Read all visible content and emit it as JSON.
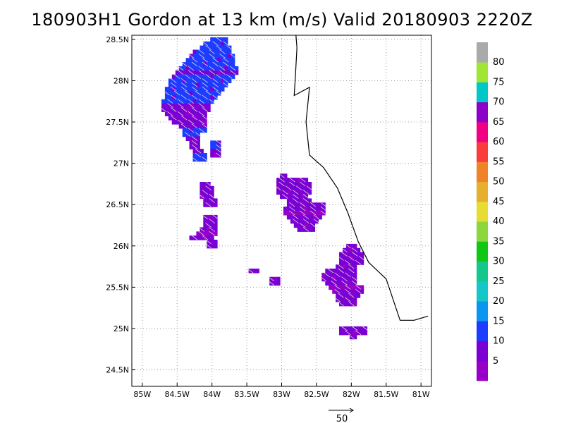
{
  "title": "180903H1 Gordon at 13 km (m/s) Valid 20180903  2220Z",
  "map": {
    "lon_range": [
      -85.15,
      -80.85
    ],
    "lat_range": [
      24.3,
      28.55
    ],
    "lat_ticks": [
      {
        "value": 28.5,
        "label": "28.5N"
      },
      {
        "value": 28.0,
        "label": "28N"
      },
      {
        "value": 27.5,
        "label": "27.5N"
      },
      {
        "value": 27.0,
        "label": "27N"
      },
      {
        "value": 26.5,
        "label": "26.5N"
      },
      {
        "value": 26.0,
        "label": "26N"
      },
      {
        "value": 25.5,
        "label": "25.5N"
      },
      {
        "value": 25.0,
        "label": "25N"
      },
      {
        "value": 24.5,
        "label": "24.5N"
      }
    ],
    "lon_ticks": [
      {
        "value": -85.0,
        "label": "85W"
      },
      {
        "value": -84.5,
        "label": "84.5W"
      },
      {
        "value": -84.0,
        "label": "84W"
      },
      {
        "value": -83.5,
        "label": "83.5W"
      },
      {
        "value": -83.0,
        "label": "83W"
      },
      {
        "value": -82.5,
        "label": "82.5W"
      },
      {
        "value": -82.0,
        "label": "82W"
      },
      {
        "value": -81.5,
        "label": "81.5W"
      },
      {
        "value": -81.0,
        "label": "81W"
      }
    ],
    "grid": true,
    "coastline": [
      [
        -82.8,
        28.6
      ],
      [
        -82.78,
        28.4
      ],
      [
        -82.8,
        28.1
      ],
      [
        -82.82,
        27.82
      ],
      [
        -82.6,
        27.92
      ],
      [
        -82.65,
        27.5
      ],
      [
        -82.6,
        27.1
      ],
      [
        -82.4,
        26.95
      ],
      [
        -82.2,
        26.7
      ],
      [
        -82.05,
        26.4
      ],
      [
        -81.9,
        26.05
      ],
      [
        -81.75,
        25.8
      ],
      [
        -81.5,
        25.6
      ],
      [
        -81.3,
        25.1
      ],
      [
        -81.1,
        25.1
      ],
      [
        -80.9,
        25.15
      ]
    ],
    "colors": [
      "#9800c8",
      "#7a00d4",
      "#1e3cff",
      "#0a96f0",
      "#14c8c8",
      "#14c88c",
      "#10c814",
      "#8cd73c",
      "#e6dc32",
      "#e6af2d",
      "#f08228",
      "#fa3c3c",
      "#f00082",
      "#8c00c8",
      "#00c8c8",
      "#a0e632",
      "#aaaaaa"
    ],
    "wind_regions": [
      {
        "name": "northwest-band",
        "rows": [
          [
            28.5,
            -84.0,
            -83.8,
            2
          ],
          [
            28.45,
            -84.1,
            -83.8,
            2
          ],
          [
            28.4,
            -84.15,
            -83.75,
            2
          ],
          [
            28.35,
            -84.25,
            -83.75,
            2
          ],
          [
            28.3,
            -84.3,
            -83.7,
            2
          ],
          [
            28.25,
            -84.35,
            -83.7,
            2
          ],
          [
            28.2,
            -84.4,
            -83.7,
            2
          ],
          [
            28.15,
            -84.45,
            -83.65,
            2
          ],
          [
            28.1,
            -84.5,
            -83.65,
            1
          ],
          [
            28.05,
            -84.55,
            -83.7,
            2
          ],
          [
            28.0,
            -84.6,
            -83.75,
            2
          ],
          [
            27.95,
            -84.6,
            -83.8,
            2
          ],
          [
            27.9,
            -84.65,
            -83.85,
            2
          ],
          [
            27.85,
            -84.65,
            -83.9,
            2
          ],
          [
            27.8,
            -84.65,
            -83.95,
            2
          ],
          [
            27.75,
            -84.7,
            -84.0,
            2
          ],
          [
            27.7,
            -84.7,
            -84.05,
            1
          ],
          [
            27.65,
            -84.7,
            -84.05,
            1
          ],
          [
            27.6,
            -84.65,
            -84.1,
            1
          ],
          [
            27.55,
            -84.6,
            -84.1,
            1
          ],
          [
            27.5,
            -84.55,
            -84.1,
            1
          ],
          [
            27.45,
            -84.45,
            -84.1,
            1
          ],
          [
            27.4,
            -84.4,
            -84.1,
            2
          ],
          [
            27.35,
            -84.4,
            -84.2,
            2
          ],
          [
            27.3,
            -84.35,
            -84.2,
            1
          ],
          [
            27.25,
            -84.3,
            -84.2,
            1
          ],
          [
            27.2,
            -84.3,
            -84.2,
            1
          ],
          [
            27.15,
            -84.25,
            -84.15,
            1
          ],
          [
            27.1,
            -84.25,
            -84.1,
            2
          ],
          [
            27.05,
            -84.25,
            -84.1,
            2
          ],
          [
            27.25,
            -84.0,
            -83.9,
            2
          ],
          [
            27.2,
            -84.0,
            -83.9,
            2
          ],
          [
            27.15,
            -84.0,
            -83.9,
            1
          ],
          [
            27.1,
            -84.0,
            -83.9,
            1
          ]
        ]
      },
      {
        "name": "west-central",
        "rows": [
          [
            26.75,
            -84.15,
            -84.05,
            1
          ],
          [
            26.7,
            -84.15,
            -84.0,
            1
          ],
          [
            26.65,
            -84.15,
            -84.0,
            1
          ],
          [
            26.6,
            -84.15,
            -84.0,
            1
          ],
          [
            26.55,
            -84.1,
            -83.95,
            1
          ],
          [
            26.5,
            -84.1,
            -83.95,
            1
          ],
          [
            26.35,
            -84.1,
            -83.95,
            1
          ],
          [
            26.3,
            -84.1,
            -83.95,
            1
          ],
          [
            26.25,
            -84.1,
            -83.95,
            1
          ],
          [
            26.2,
            -84.15,
            -83.95,
            1
          ],
          [
            26.15,
            -84.2,
            -83.95,
            0
          ],
          [
            26.1,
            -84.3,
            -84.0,
            1
          ],
          [
            26.05,
            -84.05,
            -83.95,
            1
          ],
          [
            26.0,
            -84.05,
            -83.95,
            1
          ]
        ]
      },
      {
        "name": "small-cells",
        "rows": [
          [
            25.7,
            -83.45,
            -83.35,
            1
          ],
          [
            25.6,
            -83.15,
            -83.05,
            1
          ],
          [
            25.55,
            -83.15,
            -83.05,
            1
          ]
        ]
      },
      {
        "name": "central-east",
        "rows": [
          [
            26.85,
            -83.0,
            -82.95,
            1
          ],
          [
            26.8,
            -83.05,
            -82.65,
            1
          ],
          [
            26.75,
            -83.05,
            -82.6,
            1
          ],
          [
            26.7,
            -83.05,
            -82.6,
            1
          ],
          [
            26.65,
            -83.05,
            -82.6,
            1
          ],
          [
            26.6,
            -83.0,
            -82.65,
            1
          ],
          [
            26.55,
            -82.9,
            -82.6,
            1
          ],
          [
            26.5,
            -82.9,
            -82.4,
            1
          ],
          [
            26.45,
            -82.95,
            -82.4,
            1
          ],
          [
            26.4,
            -82.95,
            -82.4,
            0
          ],
          [
            26.35,
            -82.9,
            -82.45,
            1
          ],
          [
            26.3,
            -82.85,
            -82.5,
            1
          ],
          [
            26.25,
            -82.8,
            -82.55,
            1
          ],
          [
            26.2,
            -82.75,
            -82.55,
            1
          ]
        ]
      },
      {
        "name": "southeast",
        "rows": [
          [
            26.0,
            -82.05,
            -81.95,
            1
          ],
          [
            25.95,
            -82.1,
            -81.9,
            1
          ],
          [
            25.9,
            -82.15,
            -81.85,
            1
          ],
          [
            25.85,
            -82.15,
            -81.85,
            1
          ],
          [
            25.8,
            -82.15,
            -81.85,
            1
          ],
          [
            25.75,
            -82.2,
            -81.95,
            1
          ],
          [
            25.7,
            -82.35,
            -81.95,
            1
          ],
          [
            25.65,
            -82.4,
            -81.95,
            1
          ],
          [
            25.6,
            -82.4,
            -81.95,
            1
          ],
          [
            25.55,
            -82.35,
            -81.95,
            1
          ],
          [
            25.5,
            -82.3,
            -81.85,
            0
          ],
          [
            25.45,
            -82.25,
            -81.85,
            1
          ],
          [
            25.4,
            -82.2,
            -81.9,
            1
          ],
          [
            25.35,
            -82.2,
            -81.95,
            1
          ],
          [
            25.3,
            -82.15,
            -81.95,
            1
          ],
          [
            25.0,
            -82.15,
            -81.8,
            1
          ],
          [
            24.95,
            -82.15,
            -81.8,
            1
          ],
          [
            24.9,
            -82.0,
            -81.95,
            1
          ]
        ]
      }
    ]
  },
  "colorbar": {
    "labels": [
      "5",
      "10",
      "15",
      "20",
      "25",
      "30",
      "35",
      "40",
      "45",
      "50",
      "55",
      "60",
      "65",
      "70",
      "75",
      "80"
    ]
  },
  "reference_vector": {
    "label": "50"
  }
}
